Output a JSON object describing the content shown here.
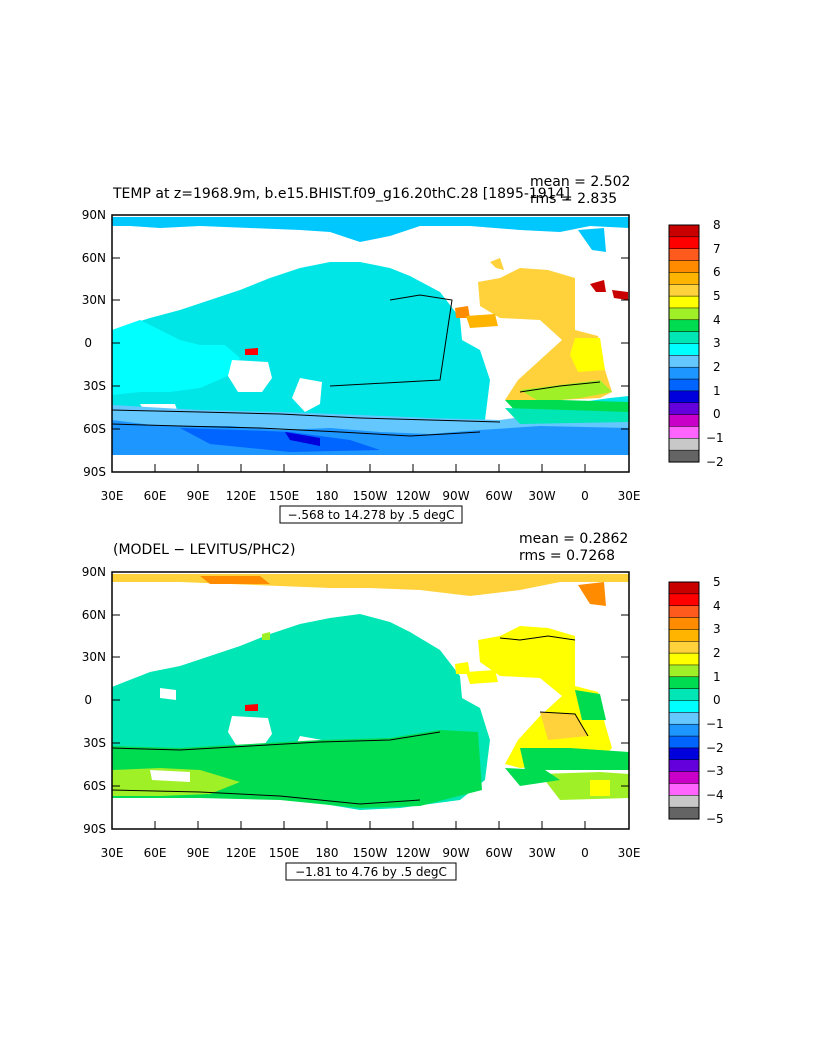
{
  "panels": [
    {
      "title": "TEMP at z=1968.9m, b.e15.BHIST.f09_g16.20thC.28 [1895-1914]",
      "mean_text": "mean = 2.502",
      "rms_text": "rms = 2.835",
      "range_label": "−.568 to 14.278 by .5 degC",
      "colorbar": {
        "labels": [
          "8",
          "7",
          "6",
          "5",
          "4",
          "3",
          "2",
          "1",
          "0",
          "−1",
          "−2"
        ],
        "colors": [
          "#c80000",
          "#ff0000",
          "#ff5a1e",
          "#ff8c00",
          "#ffb400",
          "#ffd23c",
          "#ffff00",
          "#a0f028",
          "#00dc50",
          "#00e6b4",
          "#00ffff",
          "#64c8ff",
          "#1e96ff",
          "#0064ff",
          "#0000dc",
          "#6400dc",
          "#c800c8",
          "#ff64ff",
          "#c8c8c8",
          "#646464"
        ]
      }
    },
    {
      "title": "(MODEL − LEVITUS/PHC2)",
      "mean_text": "mean = 0.2862",
      "rms_text": "rms = 0.7268",
      "range_label": "−1.81 to 4.76 by .5 degC",
      "colorbar": {
        "labels": [
          "5",
          "4",
          "3",
          "2",
          "1",
          "0",
          "−1",
          "−2",
          "−3",
          "−4",
          "−5"
        ],
        "colors": [
          "#c80000",
          "#ff0000",
          "#ff5a1e",
          "#ff8c00",
          "#ffb400",
          "#ffd23c",
          "#ffff00",
          "#a0f028",
          "#00dc50",
          "#00e6b4",
          "#00ffff",
          "#64c8ff",
          "#1e96ff",
          "#0064ff",
          "#0000dc",
          "#6400dc",
          "#c800c8",
          "#ff64ff",
          "#c8c8c8",
          "#646464"
        ]
      }
    }
  ],
  "axes": {
    "lat_labels": [
      "90N",
      "60N",
      "30N",
      "0",
      "30S",
      "60S",
      "90S"
    ],
    "lon_labels": [
      "30E",
      "60E",
      "90E",
      "120E",
      "150E",
      "180",
      "150W",
      "120W",
      "90W",
      "60W",
      "30W",
      "0",
      "30E"
    ]
  }
}
